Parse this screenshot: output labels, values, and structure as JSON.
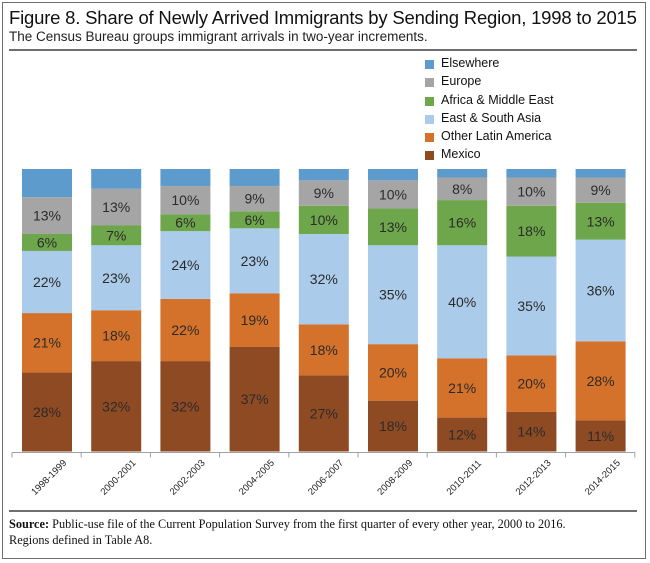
{
  "chart_data": {
    "type": "bar",
    "stacked": true,
    "title": "Figure 8. Share of Newly Arrived Immigrants by Sending Region, 1998 to 2015",
    "subtitle": "The Census Bureau groups immigrant arrivals in two-year increments.",
    "xlabel": "",
    "ylabel": "",
    "ylim": [
      0,
      100
    ],
    "grid": false,
    "legend_position": "top-right",
    "categories": [
      "1998-1999",
      "2000-2001",
      "2002-2003",
      "2004-2005",
      "2006-2007",
      "2008-2009",
      "2010-2011",
      "2012-2013",
      "2014-2015"
    ],
    "series": [
      {
        "name": "Mexico",
        "color": "#8e4a22",
        "values": [
          28,
          32,
          32,
          37,
          27,
          18,
          12,
          14,
          11
        ],
        "labels": [
          "28%",
          "32%",
          "32%",
          "37%",
          "27%",
          "18%",
          "12%",
          "14%",
          "11%"
        ]
      },
      {
        "name": "Other Latin America",
        "color": "#d4712b",
        "values": [
          21,
          18,
          22,
          19,
          18,
          20,
          21,
          20,
          28
        ],
        "labels": [
          "21%",
          "18%",
          "22%",
          "19%",
          "18%",
          "20%",
          "21%",
          "20%",
          "28%"
        ]
      },
      {
        "name": "East & South Asia",
        "color": "#aacbe9",
        "values": [
          22,
          23,
          24,
          23,
          32,
          35,
          40,
          35,
          36
        ],
        "labels": [
          "22%",
          "23%",
          "24%",
          "23%",
          "32%",
          "35%",
          "40%",
          "35%",
          "36%"
        ]
      },
      {
        "name": "Africa & Middle East",
        "color": "#6ea64b",
        "values": [
          6,
          7,
          6,
          6,
          10,
          13,
          16,
          18,
          13
        ],
        "labels": [
          "6%",
          "7%",
          "6%",
          "6%",
          "10%",
          "13%",
          "16%",
          "18%",
          "13%"
        ]
      },
      {
        "name": "Europe",
        "color": "#a5a5a5",
        "values": [
          13,
          13,
          10,
          9,
          9,
          10,
          8,
          10,
          9
        ],
        "labels": [
          "13%",
          "13%",
          "10%",
          "9%",
          "9%",
          "10%",
          "8%",
          "10%",
          "9%"
        ]
      },
      {
        "name": "Elsewhere",
        "color": "#5c9bcb",
        "values": [
          10,
          7,
          6,
          6,
          4,
          4,
          3,
          3,
          3
        ],
        "labels": [
          "",
          "",
          "",
          "",
          "",
          "",
          "",
          "",
          ""
        ]
      }
    ],
    "legend_order": [
      "Elsewhere",
      "Europe",
      "Africa & Middle East",
      "East & South Asia",
      "Other Latin America",
      "Mexico"
    ]
  },
  "source": {
    "label": "Source:",
    "text": " Public-use file of the Current Population Survey from the first quarter of every other year, 2000 to 2016.",
    "line2": "Regions defined in Table A8."
  }
}
